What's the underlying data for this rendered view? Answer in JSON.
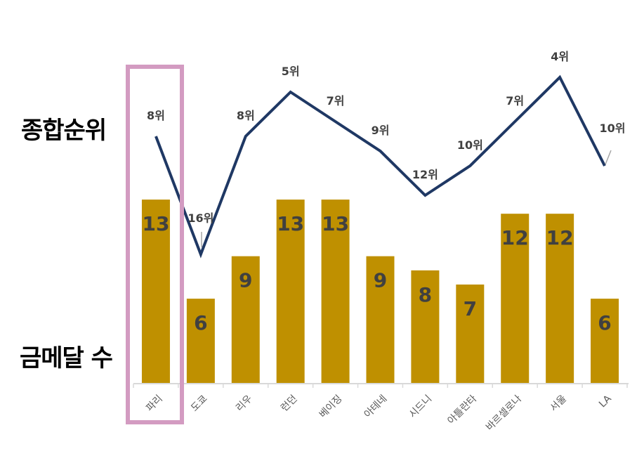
{
  "labels": {
    "rank_axis": "종합순위",
    "medal_axis": "금메달 수"
  },
  "colors": {
    "bar": "#bf9000",
    "line": "#1f3864",
    "bar_text": "#404040",
    "rank_text": "#404040",
    "tick_text": "#595959",
    "axis": "#d9d9d9",
    "highlight": "#d39bc1"
  },
  "chart_data": {
    "type": "bar",
    "categories": [
      "파리",
      "도쿄",
      "리우",
      "런던",
      "베이징",
      "아테네",
      "시드니",
      "아틀란타",
      "바르셀로나",
      "서울",
      "LA"
    ],
    "series": [
      {
        "type": "bar",
        "values": [
          13,
          6,
          9,
          13,
          13,
          9,
          8,
          7,
          12,
          12,
          6
        ],
        "data_labels": [
          "13",
          "6",
          "9",
          "13",
          "13",
          "9",
          "8",
          "7",
          "12",
          "12",
          "6"
        ]
      },
      {
        "type": "line",
        "values": [
          8,
          16,
          8,
          5,
          7,
          9,
          12,
          10,
          7,
          4,
          10
        ],
        "data_labels": [
          "8위",
          "16위",
          "8위",
          "5위",
          "7위",
          "9위",
          "12위",
          "10위",
          "7위",
          "4위",
          "10위"
        ]
      }
    ],
    "highlighted_category": "파리"
  }
}
